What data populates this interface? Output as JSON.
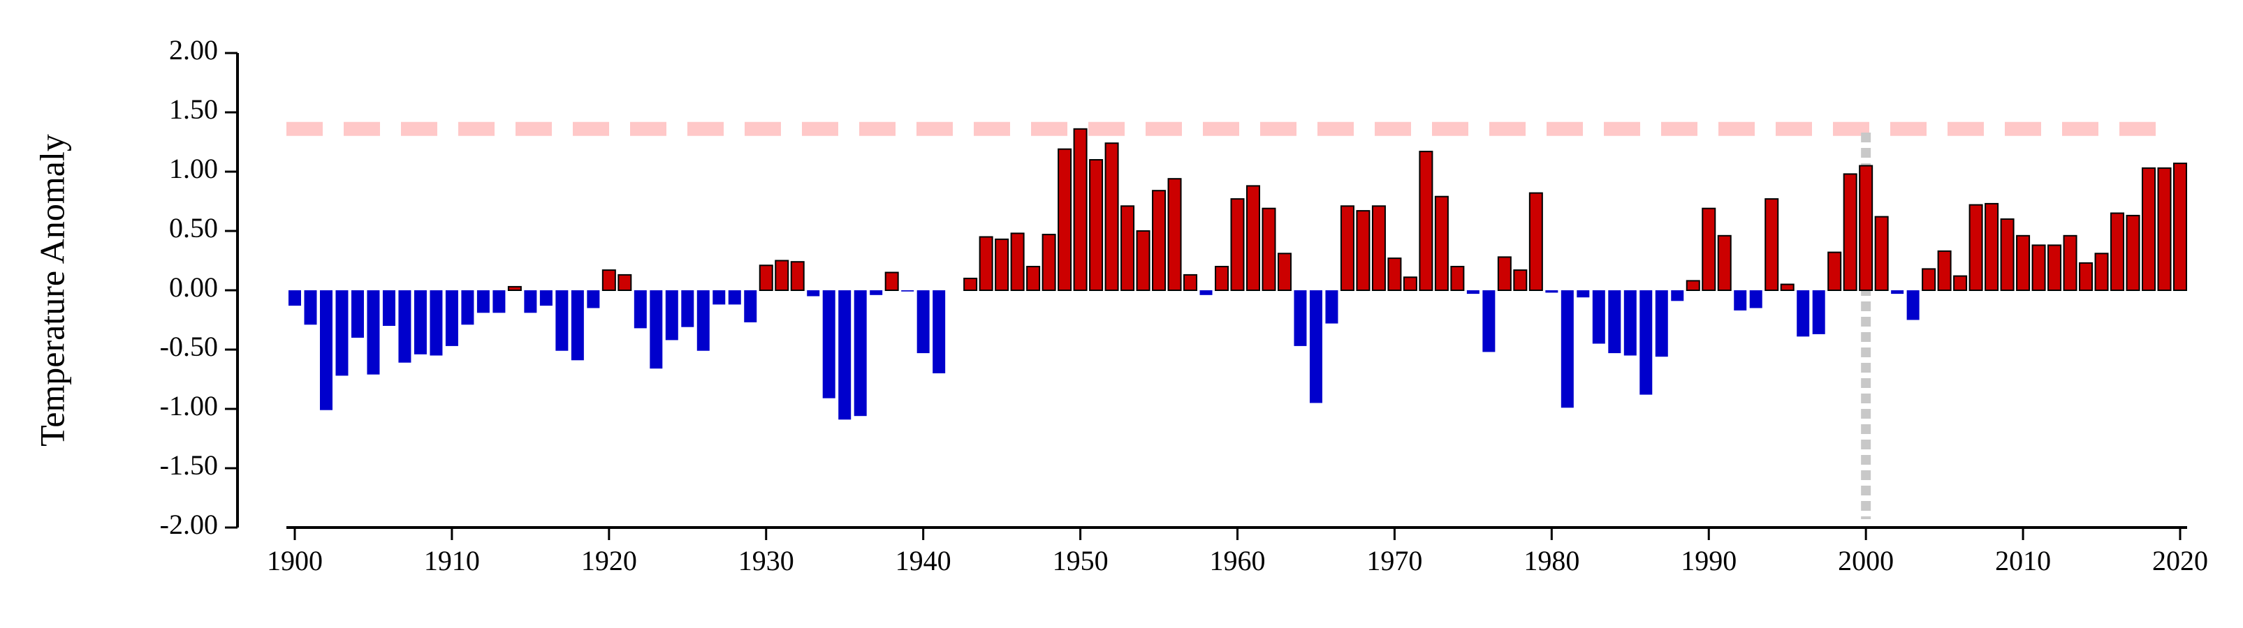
{
  "chart_data": {
    "type": "bar",
    "y_label": "Temperature Anomaly",
    "x": [
      1900,
      1901,
      1902,
      1903,
      1904,
      1905,
      1906,
      1907,
      1908,
      1909,
      1910,
      1911,
      1912,
      1913,
      1914,
      1915,
      1916,
      1917,
      1918,
      1919,
      1920,
      1921,
      1922,
      1923,
      1924,
      1925,
      1926,
      1927,
      1928,
      1929,
      1930,
      1931,
      1932,
      1933,
      1934,
      1935,
      1936,
      1937,
      1938,
      1939,
      1940,
      1941,
      1942,
      1943,
      1944,
      1945,
      1946,
      1947,
      1948,
      1949,
      1950,
      1951,
      1952,
      1953,
      1954,
      1955,
      1956,
      1957,
      1958,
      1959,
      1960,
      1961,
      1962,
      1963,
      1964,
      1965,
      1966,
      1967,
      1968,
      1969,
      1970,
      1971,
      1972,
      1973,
      1974,
      1975,
      1976,
      1977,
      1978,
      1979,
      1980,
      1981,
      1982,
      1983,
      1984,
      1985,
      1986,
      1987,
      1988,
      1989,
      1990,
      1991,
      1992,
      1993,
      1994,
      1995,
      1996,
      1997,
      1998,
      1999,
      2000,
      2001,
      2002,
      2003,
      2004,
      2005,
      2006,
      2007,
      2008,
      2009,
      2010,
      2011,
      2012,
      2013,
      2014,
      2015,
      2016,
      2017,
      2018,
      2019,
      2020
    ],
    "values": [
      -0.13,
      -0.29,
      -1.01,
      -0.72,
      -0.4,
      -0.71,
      -0.3,
      -0.61,
      -0.54,
      -0.55,
      -0.47,
      -0.29,
      -0.19,
      -0.19,
      0.03,
      -0.19,
      -0.13,
      -0.51,
      -0.59,
      -0.15,
      0.17,
      0.13,
      -0.32,
      -0.66,
      -0.42,
      -0.31,
      -0.51,
      -0.12,
      -0.12,
      -0.27,
      0.21,
      0.25,
      0.24,
      -0.05,
      -0.91,
      -1.09,
      -1.06,
      -0.04,
      0.15,
      -0.01,
      -0.53,
      -0.7,
      0.0,
      0.1,
      0.45,
      0.43,
      0.48,
      0.2,
      0.47,
      1.19,
      1.36,
      1.1,
      1.24,
      0.71,
      0.5,
      0.84,
      0.94,
      0.13,
      -0.04,
      0.2,
      0.77,
      0.88,
      0.69,
      0.31,
      -0.47,
      -0.95,
      -0.28,
      0.71,
      0.67,
      0.71,
      0.27,
      0.11,
      1.17,
      0.79,
      0.2,
      -0.03,
      -0.52,
      0.28,
      0.17,
      0.82,
      -0.02,
      -0.99,
      -0.06,
      -0.45,
      -0.53,
      -0.55,
      -0.88,
      -0.56,
      -0.09,
      0.08,
      0.69,
      0.46,
      -0.17,
      -0.15,
      0.77,
      0.05,
      -0.39,
      -0.37,
      0.32,
      0.98,
      1.05,
      0.62,
      -0.03,
      -0.25,
      0.18,
      0.33,
      0.12,
      0.72,
      0.73,
      0.6,
      0.46,
      0.38,
      0.38,
      0.46,
      0.23,
      0.31,
      0.65,
      0.63,
      1.03,
      1.03,
      1.07
    ],
    "color_positive": "#cc0000",
    "color_negative": "#0000cc",
    "xlim": [
      1900,
      2020
    ],
    "xticks": [
      1900,
      1910,
      1920,
      1930,
      1940,
      1950,
      1960,
      1970,
      1980,
      1990,
      2000,
      2010,
      2020
    ],
    "ylim": [
      -2,
      2
    ],
    "yticks": [
      {
        "value": -2,
        "label": "-2.00"
      },
      {
        "value": -1.5,
        "label": "-1.50"
      },
      {
        "value": -1,
        "label": "-1.00"
      },
      {
        "value": -0.5,
        "label": "-0.50"
      },
      {
        "value": 0,
        "label": "0.00"
      },
      {
        "value": 0.5,
        "label": "0.50"
      },
      {
        "value": 1,
        "label": "1.00"
      },
      {
        "value": 1.5,
        "label": "1.50"
      },
      {
        "value": 2,
        "label": "2.00"
      }
    ],
    "hline": {
      "value": 1.36,
      "color": "#ffc8c8"
    },
    "vline": {
      "value": 2000,
      "color": "#c8c8c8"
    }
  }
}
